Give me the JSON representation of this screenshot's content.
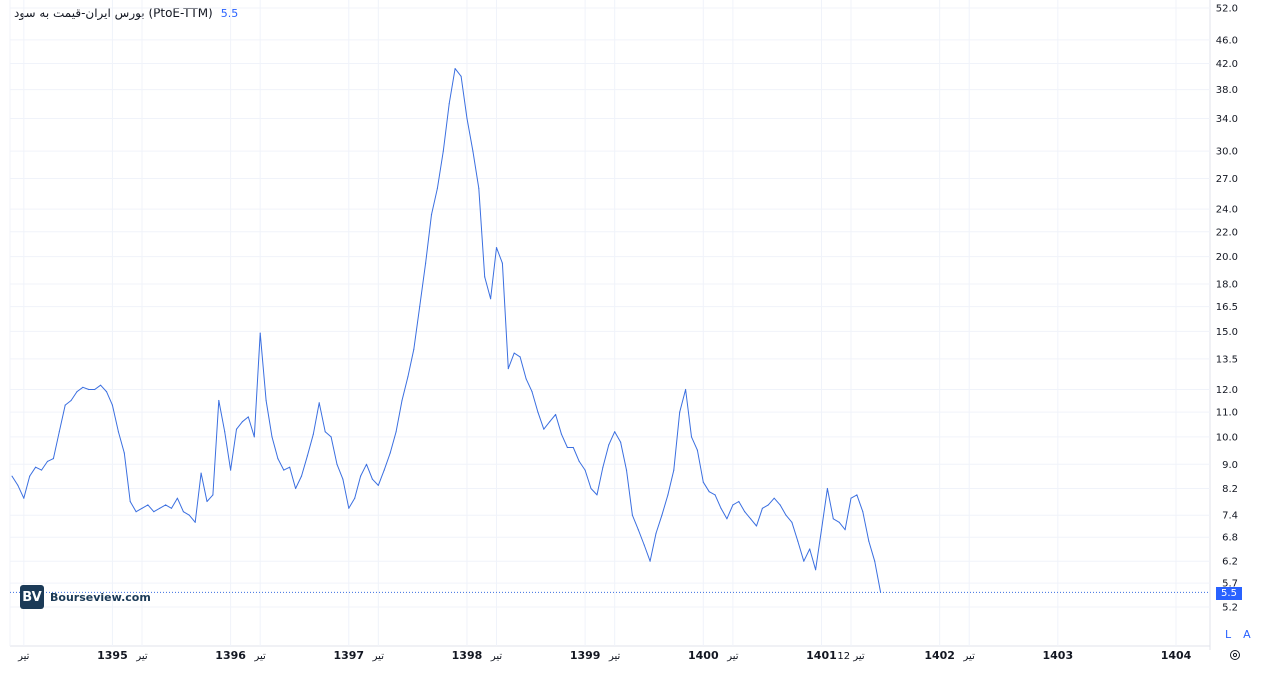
{
  "header": {
    "title": "بورس ایران-قیمت به سود (PtoE-TTM)",
    "last_value": "5.5"
  },
  "logo": {
    "mark": "BV",
    "text": "Bourseview.com"
  },
  "scale_buttons": [
    "L",
    "A"
  ],
  "price_tag": "5.5",
  "chart_data": {
    "type": "line",
    "title": "بورس ایران-قیمت به سود (PtoE-TTM)",
    "xlabel": "",
    "ylabel": "",
    "log_scale": true,
    "ylim": [
      5.0,
      52.0
    ],
    "y_ticks": [
      52.0,
      46.0,
      42.0,
      38.0,
      34.0,
      30.0,
      27.0,
      24.0,
      22.0,
      20.0,
      18.0,
      16.5,
      15.0,
      13.5,
      12.0,
      11.0,
      10.0,
      9.0,
      8.2,
      7.4,
      6.8,
      6.2,
      5.7,
      5.2
    ],
    "x_ticks": [
      {
        "t": 1394.25,
        "label": "تیر",
        "bold": false
      },
      {
        "t": 1395.0,
        "label": "1395",
        "bold": true
      },
      {
        "t": 1395.25,
        "label": "تیر",
        "bold": false
      },
      {
        "t": 1396.0,
        "label": "1396",
        "bold": true
      },
      {
        "t": 1396.25,
        "label": "تیر",
        "bold": false
      },
      {
        "t": 1397.0,
        "label": "1397",
        "bold": true
      },
      {
        "t": 1397.25,
        "label": "تیر",
        "bold": false
      },
      {
        "t": 1398.0,
        "label": "1398",
        "bold": true
      },
      {
        "t": 1398.25,
        "label": "تیر",
        "bold": false
      },
      {
        "t": 1399.0,
        "label": "1399",
        "bold": true
      },
      {
        "t": 1399.25,
        "label": "تیر",
        "bold": false
      },
      {
        "t": 1400.0,
        "label": "1400",
        "bold": true
      },
      {
        "t": 1400.25,
        "label": "تیر",
        "bold": false
      },
      {
        "t": 1401.0,
        "label": "1401",
        "bold": true
      },
      {
        "t": 1401.25,
        "label": "12 تیر",
        "bold": false
      },
      {
        "t": 1402.0,
        "label": "1402",
        "bold": true
      },
      {
        "t": 1402.25,
        "label": "تیر",
        "bold": false
      },
      {
        "t": 1403.0,
        "label": "1403",
        "bold": true
      },
      {
        "t": 1404.0,
        "label": "1404",
        "bold": true
      }
    ],
    "last_value": 5.5,
    "series": [
      {
        "color": "#3b6fe0",
        "points": [
          [
            1394.15,
            8.6
          ],
          [
            1394.2,
            8.3
          ],
          [
            1394.25,
            7.9
          ],
          [
            1394.3,
            8.6
          ],
          [
            1394.35,
            8.9
          ],
          [
            1394.4,
            8.8
          ],
          [
            1394.45,
            9.1
          ],
          [
            1394.5,
            9.2
          ],
          [
            1394.55,
            10.2
          ],
          [
            1394.6,
            11.3
          ],
          [
            1394.65,
            11.5
          ],
          [
            1394.7,
            11.9
          ],
          [
            1394.75,
            12.1
          ],
          [
            1394.8,
            12.0
          ],
          [
            1394.85,
            12.0
          ],
          [
            1394.9,
            12.2
          ],
          [
            1394.95,
            11.9
          ],
          [
            1395.0,
            11.3
          ],
          [
            1395.05,
            10.2
          ],
          [
            1395.1,
            9.4
          ],
          [
            1395.15,
            7.8
          ],
          [
            1395.2,
            7.5
          ],
          [
            1395.25,
            7.6
          ],
          [
            1395.3,
            7.7
          ],
          [
            1395.35,
            7.5
          ],
          [
            1395.4,
            7.6
          ],
          [
            1395.45,
            7.7
          ],
          [
            1395.5,
            7.6
          ],
          [
            1395.55,
            7.9
          ],
          [
            1395.6,
            7.5
          ],
          [
            1395.65,
            7.4
          ],
          [
            1395.7,
            7.2
          ],
          [
            1395.75,
            8.7
          ],
          [
            1395.8,
            7.8
          ],
          [
            1395.85,
            8.0
          ],
          [
            1395.9,
            11.5
          ],
          [
            1395.95,
            10.2
          ],
          [
            1396.0,
            8.8
          ],
          [
            1396.05,
            10.3
          ],
          [
            1396.1,
            10.6
          ],
          [
            1396.15,
            10.8
          ],
          [
            1396.2,
            10.0
          ],
          [
            1396.25,
            14.9
          ],
          [
            1396.3,
            11.5
          ],
          [
            1396.35,
            10.0
          ],
          [
            1396.4,
            9.2
          ],
          [
            1396.45,
            8.8
          ],
          [
            1396.5,
            8.9
          ],
          [
            1396.55,
            8.2
          ],
          [
            1396.6,
            8.6
          ],
          [
            1396.65,
            9.3
          ],
          [
            1396.7,
            10.1
          ],
          [
            1396.75,
            11.4
          ],
          [
            1396.8,
            10.2
          ],
          [
            1396.85,
            10.0
          ],
          [
            1396.9,
            9.0
          ],
          [
            1396.95,
            8.5
          ],
          [
            1397.0,
            7.6
          ],
          [
            1397.05,
            7.9
          ],
          [
            1397.1,
            8.6
          ],
          [
            1397.15,
            9.0
          ],
          [
            1397.2,
            8.5
          ],
          [
            1397.25,
            8.3
          ],
          [
            1397.3,
            8.8
          ],
          [
            1397.35,
            9.4
          ],
          [
            1397.4,
            10.2
          ],
          [
            1397.45,
            11.5
          ],
          [
            1397.5,
            12.6
          ],
          [
            1397.55,
            14.0
          ],
          [
            1397.6,
            16.5
          ],
          [
            1397.65,
            19.5
          ],
          [
            1397.7,
            23.5
          ],
          [
            1397.75,
            26.0
          ],
          [
            1397.8,
            30.0
          ],
          [
            1397.85,
            36.0
          ],
          [
            1397.9,
            41.2
          ],
          [
            1397.95,
            40.0
          ],
          [
            1398.0,
            34.0
          ],
          [
            1398.05,
            30.0
          ],
          [
            1398.1,
            26.0
          ],
          [
            1398.15,
            18.5
          ],
          [
            1398.2,
            17.0
          ],
          [
            1398.25,
            20.7
          ],
          [
            1398.3,
            19.5
          ],
          [
            1398.35,
            13.0
          ],
          [
            1398.4,
            13.8
          ],
          [
            1398.45,
            13.6
          ],
          [
            1398.5,
            12.5
          ],
          [
            1398.55,
            11.9
          ],
          [
            1398.6,
            11.0
          ],
          [
            1398.65,
            10.3
          ],
          [
            1398.7,
            10.6
          ],
          [
            1398.75,
            10.9
          ],
          [
            1398.8,
            10.1
          ],
          [
            1398.85,
            9.6
          ],
          [
            1398.9,
            9.6
          ],
          [
            1398.95,
            9.1
          ],
          [
            1399.0,
            8.8
          ],
          [
            1399.05,
            8.2
          ],
          [
            1399.1,
            8.0
          ],
          [
            1399.15,
            8.9
          ],
          [
            1399.2,
            9.7
          ],
          [
            1399.25,
            10.2
          ],
          [
            1399.3,
            9.8
          ],
          [
            1399.35,
            8.8
          ],
          [
            1399.4,
            7.4
          ],
          [
            1399.45,
            7.0
          ],
          [
            1399.5,
            6.6
          ],
          [
            1399.55,
            6.2
          ],
          [
            1399.6,
            6.9
          ],
          [
            1399.65,
            7.4
          ],
          [
            1399.7,
            8.0
          ],
          [
            1399.75,
            8.8
          ],
          [
            1399.8,
            11.0
          ],
          [
            1399.85,
            12.0
          ],
          [
            1399.9,
            10.0
          ],
          [
            1399.95,
            9.5
          ],
          [
            1400.0,
            8.4
          ],
          [
            1400.05,
            8.1
          ],
          [
            1400.1,
            8.0
          ],
          [
            1400.15,
            7.6
          ],
          [
            1400.2,
            7.3
          ],
          [
            1400.25,
            7.7
          ],
          [
            1400.3,
            7.8
          ],
          [
            1400.35,
            7.5
          ],
          [
            1400.4,
            7.3
          ],
          [
            1400.45,
            7.1
          ],
          [
            1400.5,
            7.6
          ],
          [
            1400.55,
            7.7
          ],
          [
            1400.6,
            7.9
          ],
          [
            1400.65,
            7.7
          ],
          [
            1400.7,
            7.4
          ],
          [
            1400.75,
            7.2
          ],
          [
            1400.8,
            6.7
          ],
          [
            1400.85,
            6.2
          ],
          [
            1400.9,
            6.5
          ],
          [
            1400.95,
            6.0
          ],
          [
            1401.0,
            7.0
          ],
          [
            1401.05,
            8.2
          ],
          [
            1401.1,
            7.3
          ],
          [
            1401.15,
            7.2
          ],
          [
            1401.2,
            7.0
          ],
          [
            1401.25,
            7.9
          ],
          [
            1401.3,
            8.0
          ],
          [
            1401.35,
            7.5
          ],
          [
            1401.4,
            6.7
          ],
          [
            1401.45,
            6.2
          ],
          [
            1401.5,
            5.5
          ]
        ]
      }
    ]
  }
}
